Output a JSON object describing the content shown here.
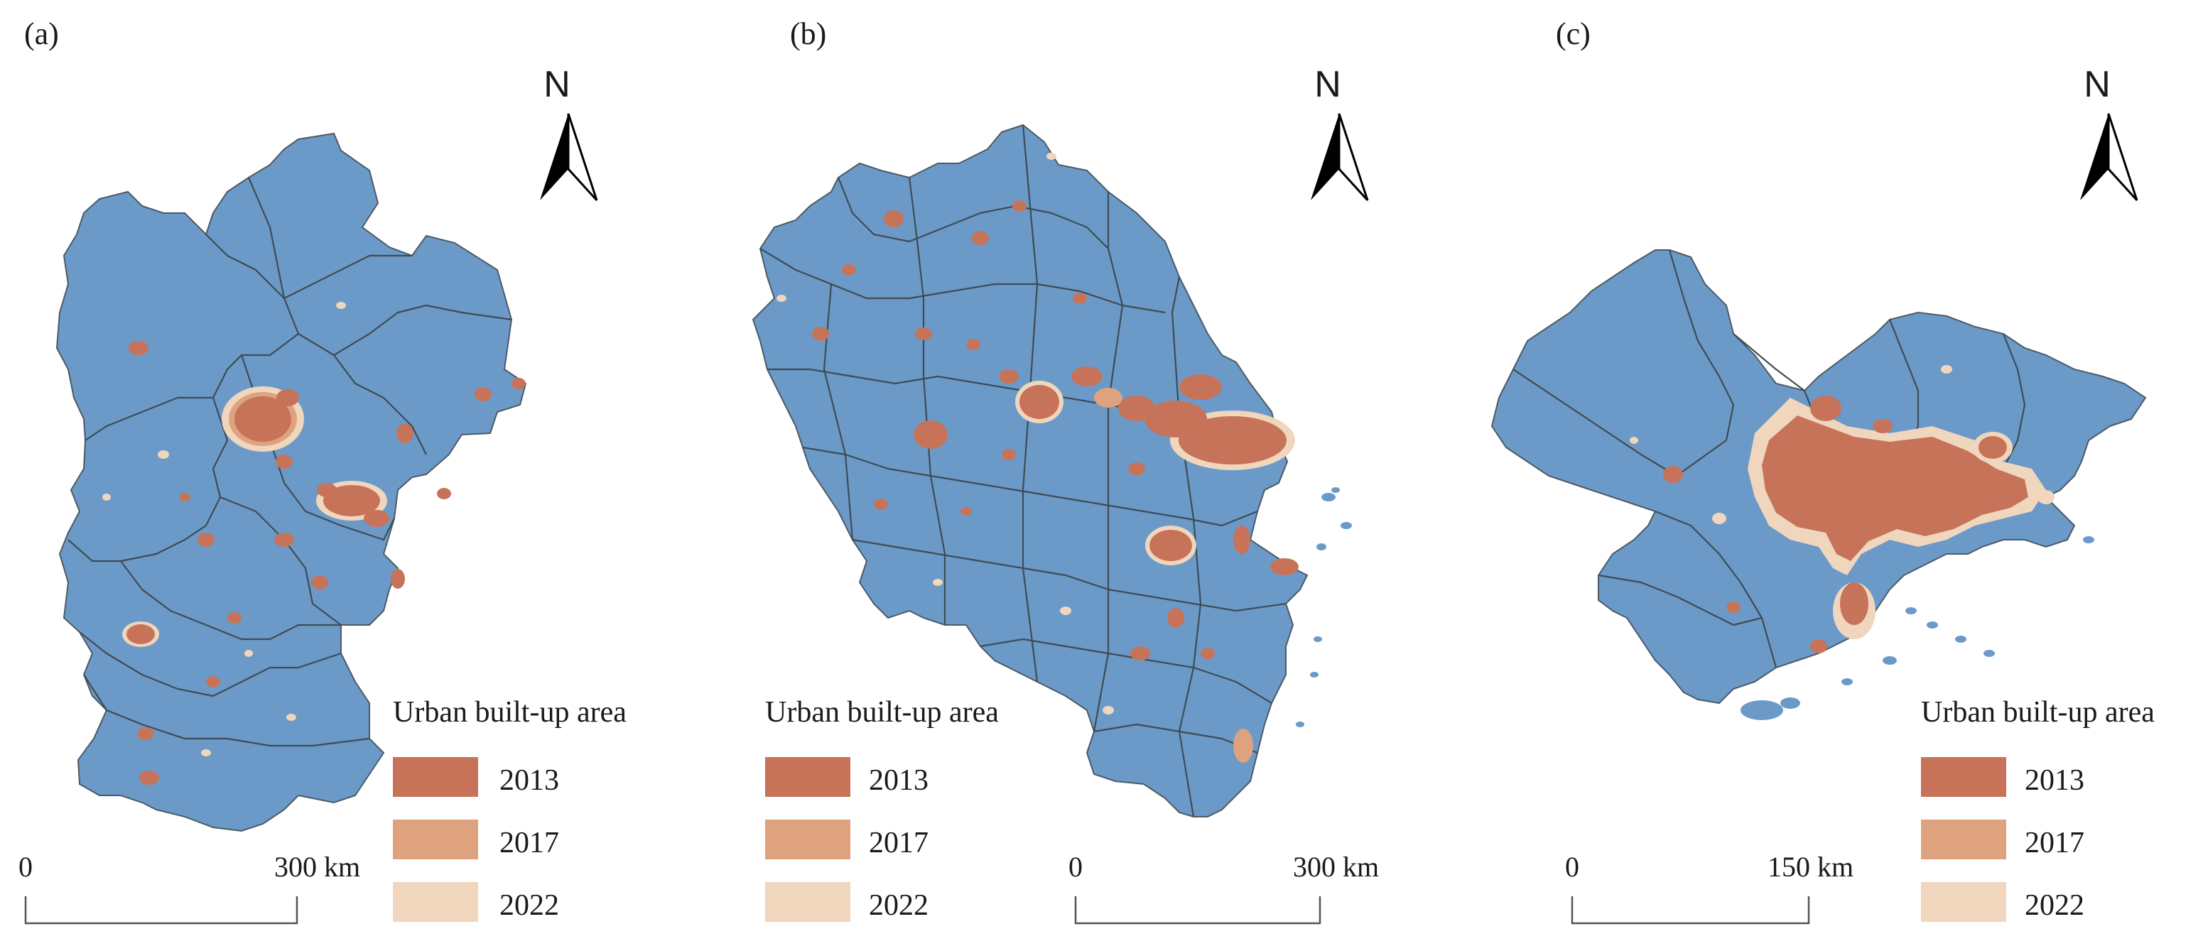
{
  "colors": {
    "land": "#6b9ac8",
    "year_2013": "#c7735a",
    "year_2017": "#dea37e",
    "year_2022": "#efd6bd"
  },
  "icons": {
    "north_arrow": "north-arrow-icon"
  },
  "panels": [
    {
      "label": "(a)",
      "north": "N",
      "legend": {
        "title": "Urban built-up area",
        "items": [
          {
            "label": "2013",
            "color": "#c7735a"
          },
          {
            "label": "2017",
            "color": "#dea37e"
          },
          {
            "label": "2022",
            "color": "#efd6bd"
          }
        ]
      },
      "scalebar": {
        "start": "0",
        "end": "300 km"
      }
    },
    {
      "label": "(b)",
      "north": "N",
      "legend": {
        "title": "Urban built-up area",
        "items": [
          {
            "label": "2013",
            "color": "#c7735a"
          },
          {
            "label": "2017",
            "color": "#dea37e"
          },
          {
            "label": "2022",
            "color": "#efd6bd"
          }
        ]
      },
      "scalebar": {
        "start": "0",
        "end": "300 km"
      }
    },
    {
      "label": "(c)",
      "north": "N",
      "legend": {
        "title": "Urban built-up area",
        "items": [
          {
            "label": "2013",
            "color": "#c7735a"
          },
          {
            "label": "2017",
            "color": "#dea37e"
          },
          {
            "label": "2022",
            "color": "#efd6bd"
          }
        ]
      },
      "scalebar": {
        "start": "0",
        "end": "150 km"
      }
    }
  ]
}
